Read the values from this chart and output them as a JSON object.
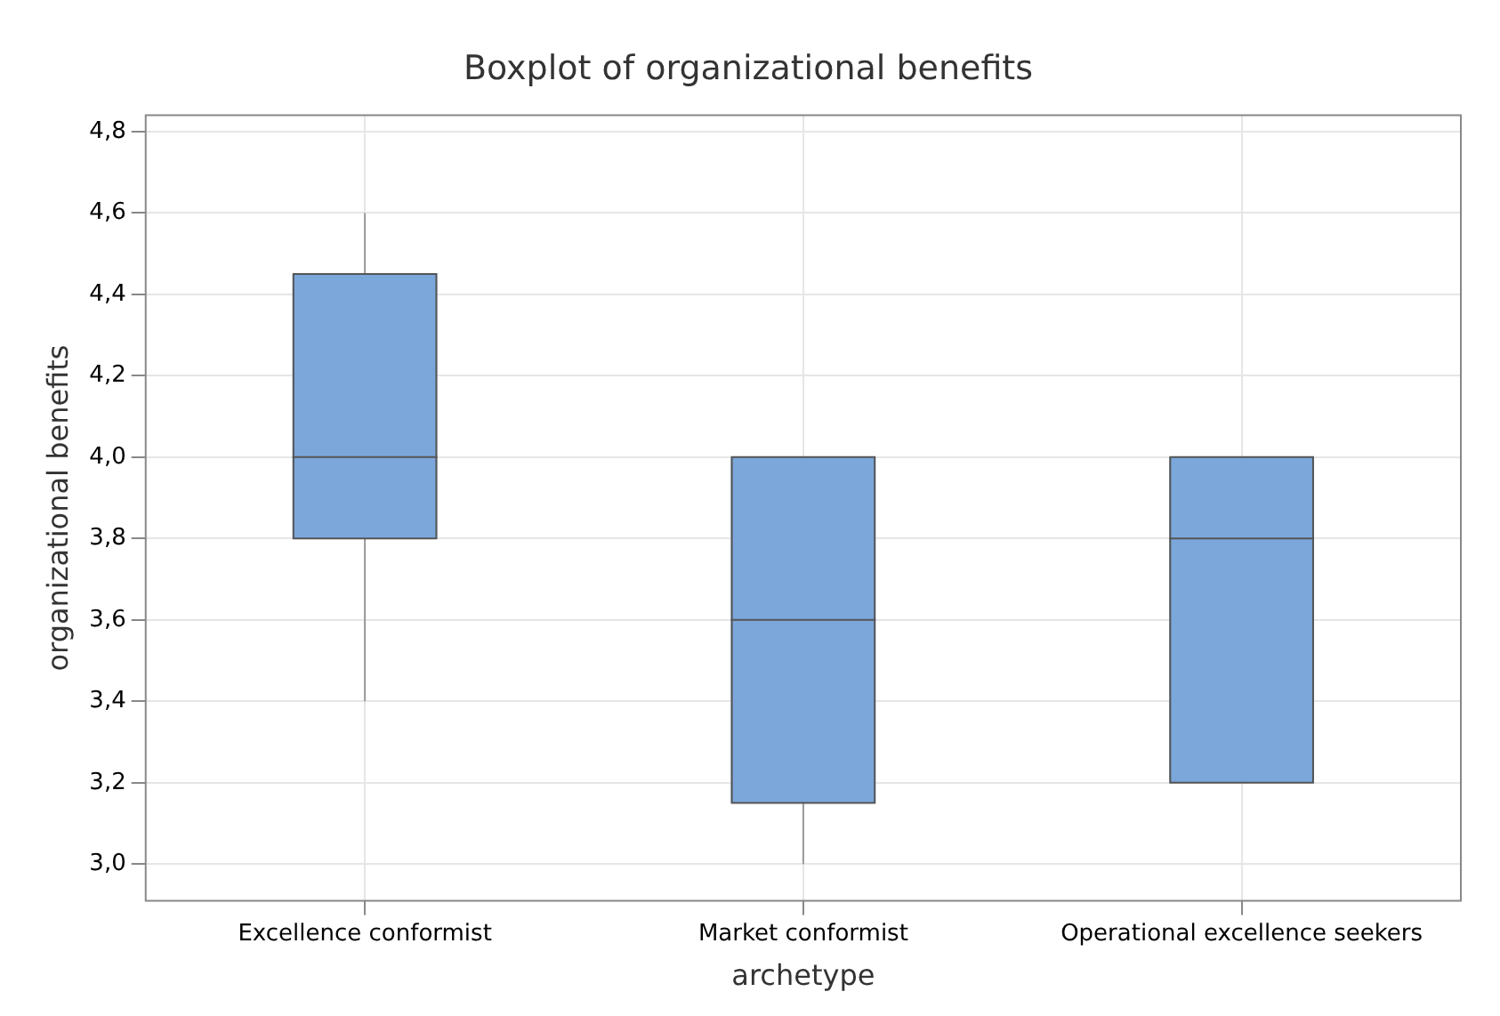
{
  "chart_data": {
    "type": "box",
    "title": "Boxplot of organizational benefits",
    "xlabel": "archetype",
    "ylabel": "organizational benefits",
    "categories": [
      "Excellence conformist",
      "Market conformist",
      "Operational excellence seekers"
    ],
    "boxes": [
      {
        "low": 3.4,
        "q1": 3.8,
        "median": 4.0,
        "q3": 4.45,
        "high": 4.6
      },
      {
        "low": 3.0,
        "q1": 3.15,
        "median": 3.6,
        "q3": 4.0,
        "high": 4.0
      },
      {
        "low": 3.2,
        "q1": 3.2,
        "median": 3.8,
        "q3": 4.0,
        "high": 4.0
      }
    ],
    "color": "#7ba7db",
    "ylim": [
      2.91,
      4.84
    ],
    "yticks": [
      {
        "value": 3.0,
        "label": "3,0"
      },
      {
        "value": 3.2,
        "label": "3,2"
      },
      {
        "value": 3.4,
        "label": "3,4"
      },
      {
        "value": 3.6,
        "label": "3,6"
      },
      {
        "value": 3.8,
        "label": "3,8"
      },
      {
        "value": 4.0,
        "label": "4,0"
      },
      {
        "value": 4.2,
        "label": "4,2"
      },
      {
        "value": 4.4,
        "label": "4,4"
      },
      {
        "value": 4.6,
        "label": "4,6"
      },
      {
        "value": 4.8,
        "label": "4,8"
      }
    ],
    "grid": true
  }
}
